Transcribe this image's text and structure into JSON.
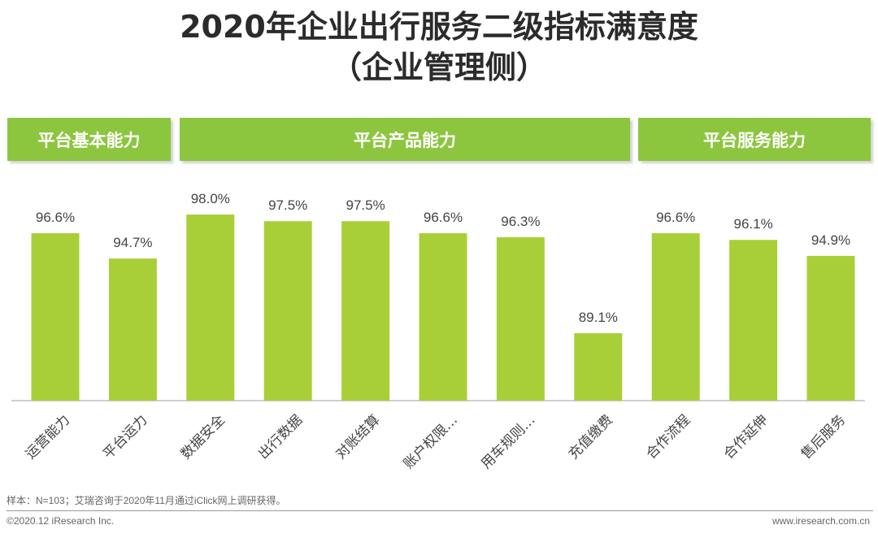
{
  "title": {
    "line1": "2020年企业出行服务二级指标满意度",
    "line2": "（企业管理侧）"
  },
  "groups": [
    {
      "label": "平台基本能力"
    },
    {
      "label": "平台产品能力"
    },
    {
      "label": "平台服务能力"
    }
  ],
  "chart_data": {
    "type": "bar",
    "title": "2020年企业出行服务二级指标满意度（企业管理侧）",
    "categories": [
      "运营能力",
      "平台运力",
      "数据安全",
      "出行数据",
      "对账结算",
      "账户权限…",
      "用车规则…",
      "充值缴费",
      "合作流程",
      "合作延伸",
      "售后服务"
    ],
    "values": [
      96.6,
      94.7,
      98.0,
      97.5,
      97.5,
      96.6,
      96.3,
      89.1,
      96.6,
      96.1,
      94.9
    ],
    "value_labels": [
      "96.6%",
      "94.7%",
      "98.0%",
      "97.5%",
      "97.5%",
      "96.6%",
      "96.3%",
      "89.1%",
      "96.6%",
      "96.1%",
      "94.9%"
    ],
    "group_membership": [
      0,
      0,
      1,
      1,
      1,
      1,
      1,
      1,
      2,
      2,
      2
    ],
    "bar_color": "#a9cf38",
    "xlabel": "",
    "ylabel": "",
    "grid": false
  },
  "footer": {
    "note": "样本：N=103；艾瑞咨询于2020年11月通过iClick网上调研获得。",
    "copyright": "©2020.12 iResearch Inc.",
    "site": "www.iresearch.com.cn"
  }
}
